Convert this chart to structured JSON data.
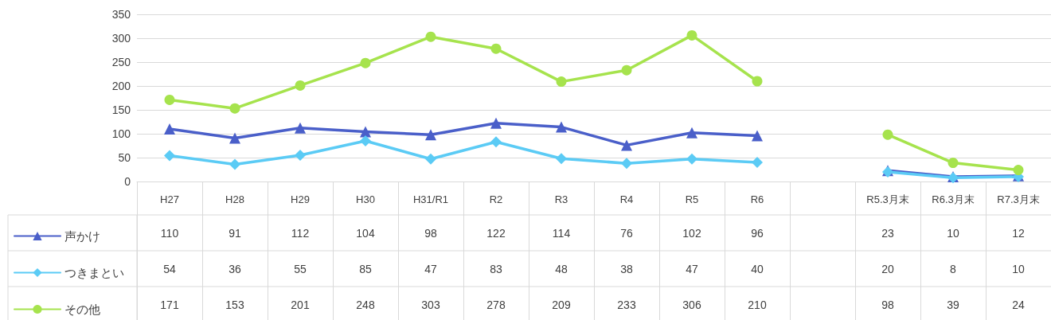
{
  "chart_data": {
    "type": "line",
    "categories": [
      "H27",
      "H28",
      "H29",
      "H30",
      "H31/R1",
      "R2",
      "R3",
      "R4",
      "R5",
      "R6",
      null,
      "R5.3月末",
      "R6.3月末",
      "R7.3月末"
    ],
    "series": [
      {
        "name": "声かけ",
        "color": "#4a5fc9",
        "marker": "triangle",
        "values": [
          110,
          91,
          112,
          104,
          98,
          122,
          114,
          76,
          102,
          96,
          null,
          23,
          10,
          12
        ]
      },
      {
        "name": "つきまとい",
        "color": "#5bcbf5",
        "marker": "diamond",
        "values": [
          54,
          36,
          55,
          85,
          47,
          83,
          48,
          38,
          47,
          40,
          null,
          20,
          8,
          10
        ]
      },
      {
        "name": "その他",
        "color": "#a6e34d",
        "marker": "circle",
        "values": [
          171,
          153,
          201,
          248,
          303,
          278,
          209,
          233,
          306,
          210,
          null,
          98,
          39,
          24
        ]
      }
    ],
    "ylim": [
      0,
      350
    ],
    "yticks": [
      0,
      50,
      100,
      150,
      200,
      250,
      300,
      350
    ],
    "grid": "y",
    "legend": "bottom left",
    "data_labels": true,
    "line_style": "solid"
  }
}
